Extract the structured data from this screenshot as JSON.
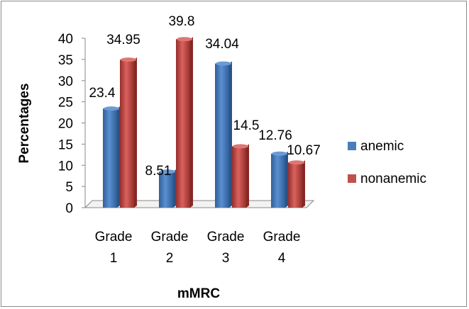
{
  "chart_data": {
    "type": "bar",
    "title": "",
    "xlabel": "mMRC",
    "ylabel": "Percentages",
    "ylim": [
      0,
      40
    ],
    "yticks": [
      0,
      5,
      10,
      15,
      20,
      25,
      30,
      35,
      40
    ],
    "categories": [
      [
        "Grade",
        "1"
      ],
      [
        "Grade",
        "2"
      ],
      [
        "Grade",
        "3"
      ],
      [
        "Grade",
        "4"
      ]
    ],
    "series": [
      {
        "name": "anemic",
        "values": [
          23.4,
          8.51,
          34.04,
          12.76
        ],
        "labels": [
          "23.4",
          "8.51",
          "34.04",
          "12.76"
        ],
        "color": "#4a7ebb"
      },
      {
        "name": "nonanemic",
        "values": [
          34.95,
          39.8,
          14.5,
          10.67
        ],
        "labels": [
          "34.95",
          "39.8",
          "14.5",
          "10.67"
        ],
        "color": "#c0504d"
      }
    ],
    "legend_position": "right",
    "grid": false
  }
}
